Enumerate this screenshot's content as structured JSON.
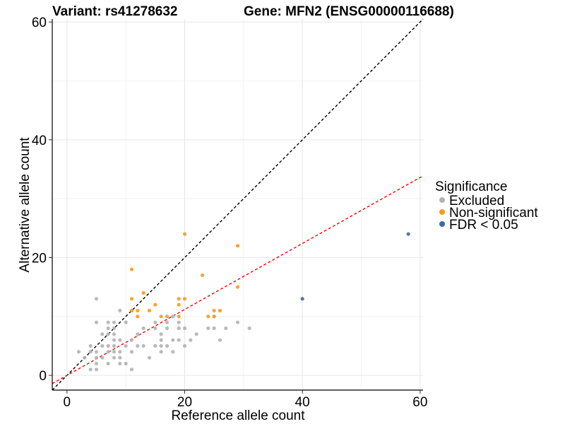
{
  "chart_data": {
    "type": "scatter",
    "title_left": "Variant: rs41278632",
    "title_right": "Gene: MFN2 (ENSG00000116688)",
    "xlabel": "Reference allele count",
    "ylabel": "Alternative allele count",
    "xlim": [
      -2.5,
      60.5
    ],
    "ylim": [
      -2.5,
      60.5
    ],
    "xticks": [
      0,
      20,
      40,
      60
    ],
    "yticks": [
      0,
      20,
      40,
      60
    ],
    "grid": true,
    "legend_position": "right",
    "legend_title": "Significance",
    "reference_lines": [
      {
        "name": "identity",
        "slope": 1,
        "intercept": 0,
        "color": "#000000",
        "style": "dashed"
      },
      {
        "name": "fit",
        "slope": 0.56,
        "intercept": 0,
        "color": "#ff0000",
        "style": "dashed"
      }
    ],
    "series": [
      {
        "name": "Excluded",
        "color": "#b3b3b3",
        "points": [
          [
            2,
            4
          ],
          [
            3,
            3
          ],
          [
            4,
            1
          ],
          [
            4,
            4
          ],
          [
            4,
            5
          ],
          [
            5,
            1
          ],
          [
            5,
            2
          ],
          [
            5,
            3
          ],
          [
            5,
            4
          ],
          [
            5,
            9
          ],
          [
            5,
            13
          ],
          [
            6,
            3
          ],
          [
            6,
            5
          ],
          [
            6,
            7
          ],
          [
            7,
            2
          ],
          [
            7,
            4
          ],
          [
            7,
            5
          ],
          [
            7,
            7
          ],
          [
            7,
            8
          ],
          [
            7,
            9
          ],
          [
            8,
            3
          ],
          [
            8,
            4
          ],
          [
            8,
            5
          ],
          [
            8,
            6
          ],
          [
            8,
            7
          ],
          [
            8,
            8
          ],
          [
            8,
            9
          ],
          [
            9,
            2
          ],
          [
            9,
            3
          ],
          [
            9,
            4
          ],
          [
            9,
            6
          ],
          [
            9,
            11
          ],
          [
            10,
            2
          ],
          [
            10,
            5
          ],
          [
            10,
            9
          ],
          [
            11,
            1
          ],
          [
            11,
            4
          ],
          [
            11,
            6
          ],
          [
            12,
            5
          ],
          [
            12,
            7
          ],
          [
            13,
            5
          ],
          [
            13,
            8
          ],
          [
            14,
            3
          ],
          [
            15,
            5
          ],
          [
            15,
            8
          ],
          [
            15,
            9
          ],
          [
            16,
            4
          ],
          [
            16,
            5
          ],
          [
            16,
            6
          ],
          [
            16,
            7
          ],
          [
            17,
            5
          ],
          [
            17,
            8
          ],
          [
            17,
            9
          ],
          [
            18,
            4
          ],
          [
            18,
            6
          ],
          [
            18,
            10
          ],
          [
            19,
            6
          ],
          [
            19,
            8
          ],
          [
            19,
            9
          ],
          [
            20,
            5
          ],
          [
            20,
            8
          ],
          [
            21,
            6
          ],
          [
            22,
            7
          ],
          [
            24,
            8
          ],
          [
            25,
            8
          ],
          [
            25,
            10
          ],
          [
            26,
            6
          ],
          [
            27,
            8
          ],
          [
            29,
            9
          ],
          [
            31,
            8
          ]
        ]
      },
      {
        "name": "Non-significant",
        "color": "#f59b1e",
        "points": [
          [
            11,
            11
          ],
          [
            11,
            13
          ],
          [
            11,
            18
          ],
          [
            12,
            10
          ],
          [
            12,
            11
          ],
          [
            13,
            14
          ],
          [
            14,
            11
          ],
          [
            15,
            12
          ],
          [
            16,
            10
          ],
          [
            17,
            10
          ],
          [
            19,
            10
          ],
          [
            19,
            12
          ],
          [
            19,
            13
          ],
          [
            20,
            13
          ],
          [
            20,
            24
          ],
          [
            23,
            17
          ],
          [
            24,
            10
          ],
          [
            25,
            10
          ],
          [
            25,
            11
          ],
          [
            26,
            11
          ],
          [
            29,
            15
          ],
          [
            29,
            22
          ]
        ]
      },
      {
        "name": "FDR < 0.05",
        "color": "#3a6da0",
        "points": [
          [
            40,
            13
          ],
          [
            58,
            24
          ]
        ]
      }
    ]
  }
}
